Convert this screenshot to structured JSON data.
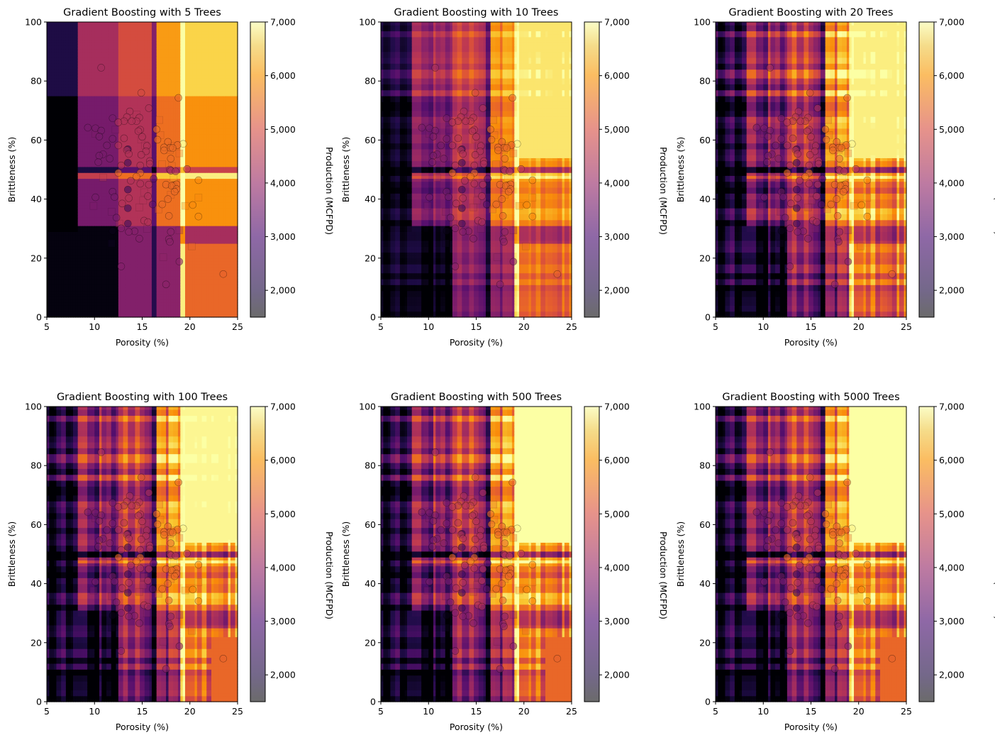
{
  "figure": {
    "colorbar_label": "Production (MCFPD)",
    "colorbar_ticks": [
      "2,000",
      "3,000",
      "4,000",
      "5,000",
      "6,000",
      "7,000"
    ],
    "colorbar_tick_values": [
      2000,
      3000,
      4000,
      5000,
      6000,
      7000
    ],
    "colorbar_range": [
      1500,
      7000
    ],
    "colormap": "inferno",
    "x_ticks": [
      "5",
      "10",
      "15",
      "20",
      "25"
    ],
    "y_ticks": [
      "0",
      "20",
      "40",
      "60",
      "80",
      "100"
    ]
  },
  "chart_data": [
    {
      "type": "heatmap",
      "title": "Gradient Boosting with 5 Trees",
      "xlabel": "Porosity (%)",
      "ylabel": "Brittleness (%)",
      "xlim": [
        5,
        25
      ],
      "ylim": [
        0,
        100
      ],
      "n_trees": 5,
      "x_splits": [
        5,
        8.3,
        12.5,
        13.0,
        13.5,
        14.6,
        16.0,
        16.4,
        19.1,
        19.5,
        25
      ],
      "y_splits": [
        0,
        24.5,
        29,
        31,
        47,
        49,
        51,
        75,
        100
      ],
      "smoothness": 0
    },
    {
      "type": "heatmap",
      "title": "Gradient Boosting with 10 Trees",
      "xlabel": "Porosity (%)",
      "ylabel": "Brittleness (%)",
      "xlim": [
        5,
        25
      ],
      "ylim": [
        0,
        100
      ],
      "n_trees": 10,
      "smoothness": 1
    },
    {
      "type": "heatmap",
      "title": "Gradient Boosting with 20 Trees",
      "xlabel": "Porosity (%)",
      "ylabel": "Brittleness (%)",
      "xlim": [
        5,
        25
      ],
      "ylim": [
        0,
        100
      ],
      "n_trees": 20,
      "smoothness": 2
    },
    {
      "type": "heatmap",
      "title": "Gradient Boosting with 100 Trees",
      "xlabel": "Porosity (%)",
      "ylabel": "Brittleness (%)",
      "xlim": [
        5,
        25
      ],
      "ylim": [
        0,
        100
      ],
      "n_trees": 100,
      "smoothness": 3
    },
    {
      "type": "heatmap",
      "title": "Gradient Boosting with 500 Trees",
      "xlabel": "Porosity (%)",
      "ylabel": "Brittleness (%)",
      "xlim": [
        5,
        25
      ],
      "ylim": [
        0,
        100
      ],
      "n_trees": 500,
      "smoothness": 4
    },
    {
      "type": "heatmap",
      "title": "Gradient Boosting with 5000 Trees",
      "xlabel": "Porosity (%)",
      "ylabel": "Brittleness (%)",
      "xlim": [
        5,
        25
      ],
      "ylim": [
        0,
        100
      ],
      "n_trees": 5000,
      "smoothness": 4
    }
  ],
  "scatter": {
    "train": [
      [
        10.7,
        84.5
      ],
      [
        14.9,
        76
      ],
      [
        18.8,
        74.3
      ],
      [
        15.7,
        70.8
      ],
      [
        13.7,
        69.7
      ],
      [
        14.7,
        67.6
      ],
      [
        13.4,
        67.8
      ],
      [
        11.9,
        67.4
      ],
      [
        14.4,
        66.4
      ],
      [
        13.1,
        66.4
      ],
      [
        12.5,
        66
      ],
      [
        13.9,
        66.4
      ],
      [
        9.3,
        64.2
      ],
      [
        10.1,
        64
      ],
      [
        10.7,
        63.2
      ],
      [
        14.8,
        63.5
      ],
      [
        16.5,
        63.6
      ],
      [
        14.6,
        63
      ],
      [
        10.5,
        61.2
      ],
      [
        15,
        61.1
      ],
      [
        13.1,
        60.6
      ],
      [
        11.9,
        60.4
      ],
      [
        16.6,
        60.1
      ],
      [
        17.7,
        59.4
      ],
      [
        19.3,
        58.7
      ],
      [
        18.7,
        58.3
      ],
      [
        17.9,
        57.4
      ],
      [
        15.5,
        58
      ],
      [
        12.5,
        58.2
      ],
      [
        17.3,
        57.5
      ],
      [
        18.2,
        57.3
      ],
      [
        17.3,
        56.5
      ],
      [
        13.5,
        56.9
      ],
      [
        15.4,
        56.2
      ],
      [
        11.3,
        58.2
      ],
      [
        13.4,
        56.6
      ],
      [
        13.6,
        55.3
      ],
      [
        14.9,
        55
      ],
      [
        10.9,
        55.2
      ],
      [
        10.5,
        54.7
      ],
      [
        11.6,
        53.7
      ],
      [
        18,
        53.7
      ],
      [
        15.8,
        52.9
      ],
      [
        10.4,
        52.5
      ],
      [
        13.5,
        52.3
      ],
      [
        15.8,
        51.9
      ],
      [
        14.8,
        51.4
      ],
      [
        12.8,
        51.4
      ],
      [
        17.9,
        50
      ],
      [
        18,
        49.6
      ],
      [
        19.7,
        50.2
      ],
      [
        18.5,
        49.4
      ],
      [
        14.8,
        48.9
      ],
      [
        12.5,
        48.9
      ],
      [
        14.4,
        47.6
      ],
      [
        16.2,
        46.9
      ],
      [
        13.8,
        46.2
      ],
      [
        20.9,
        46.4
      ],
      [
        14.8,
        45.2
      ],
      [
        15.7,
        44.9
      ],
      [
        17.5,
        44.9
      ],
      [
        18.3,
        44.6
      ],
      [
        18.6,
        45
      ],
      [
        18.1,
        44.5
      ],
      [
        18.6,
        43.4
      ],
      [
        13.5,
        43.2
      ],
      [
        18.4,
        42.5
      ],
      [
        11.9,
        42.5
      ],
      [
        10.1,
        40.6
      ],
      [
        12.1,
        40.7
      ],
      [
        13.6,
        40.3
      ],
      [
        15.6,
        41
      ],
      [
        17.7,
        40
      ],
      [
        16.1,
        38.2
      ],
      [
        17.1,
        38.2
      ],
      [
        12.9,
        38.5
      ],
      [
        20.3,
        38
      ],
      [
        13.5,
        36.9
      ],
      [
        17.8,
        34.3
      ],
      [
        20.9,
        34.1
      ],
      [
        12.3,
        33.7
      ],
      [
        15.2,
        32.7
      ],
      [
        15.6,
        32.2
      ],
      [
        13.5,
        31.7
      ],
      [
        12.8,
        30.1
      ],
      [
        14.2,
        29.1
      ],
      [
        11.9,
        29.2
      ],
      [
        13.6,
        28.9
      ],
      [
        18,
        28.9
      ],
      [
        14.7,
        26.6
      ],
      [
        17.8,
        26.4
      ],
      [
        17.9,
        25.5
      ],
      [
        18.9,
        18.8
      ],
      [
        12.8,
        17.2
      ],
      [
        17.5,
        11.1
      ],
      [
        23.5,
        14.6
      ]
    ],
    "test": [
      [
        14.4,
        68.6
      ],
      [
        16.8,
        66.8
      ],
      [
        12.2,
        63.5
      ],
      [
        10.1,
        62.1
      ],
      [
        16.9,
        61.7
      ],
      [
        14.9,
        60.2
      ],
      [
        15.3,
        58.2
      ],
      [
        18.1,
        58
      ],
      [
        17.9,
        56.7
      ],
      [
        18.9,
        55.5
      ],
      [
        17.1,
        51.8
      ],
      [
        18.1,
        51.2
      ],
      [
        18.3,
        47.2
      ],
      [
        10.9,
        47.3
      ],
      [
        15.2,
        42.3
      ],
      [
        18,
        41.5
      ],
      [
        20.9,
        40.5
      ],
      [
        15.1,
        39.5
      ],
      [
        9.9,
        37.7
      ],
      [
        14.7,
        37.2
      ],
      [
        19.5,
        37.7
      ],
      [
        16.7,
        36.5
      ],
      [
        11.8,
        35.7
      ],
      [
        12.6,
        31.7
      ],
      [
        15.5,
        29.9
      ],
      [
        18.9,
        29.4
      ],
      [
        11.8,
        25
      ],
      [
        20.2,
        24
      ],
      [
        17.2,
        20.3
      ]
    ]
  }
}
